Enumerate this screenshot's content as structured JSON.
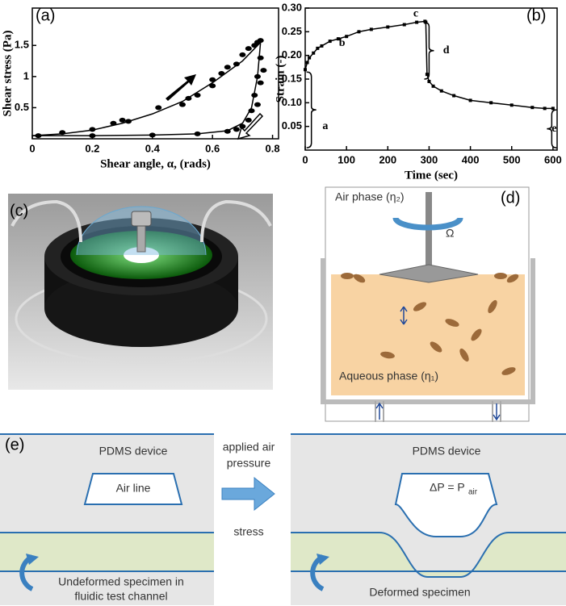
{
  "chart_data": [
    {
      "type": "scatter",
      "panel_label": "(a)",
      "x_label": "Shear angle, α, (rads)",
      "y_label": "Shear stress (Pa)",
      "xlim": [
        0,
        0.82
      ],
      "ylim": [
        0,
        2.1
      ],
      "xticks": [
        0,
        0.2,
        0.4,
        0.6,
        0.8
      ],
      "yticks": [
        0.5,
        1,
        1.5
      ],
      "series": [
        {
          "color": "#000",
          "line": false,
          "x": [
            0.02,
            0.1,
            0.2,
            0.27,
            0.3,
            0.32,
            0.42,
            0.5,
            0.52,
            0.55,
            0.6,
            0.6,
            0.63,
            0.65,
            0.68,
            0.7,
            0.72,
            0.74,
            0.76,
            0.75,
            0.76,
            0.75,
            0.74,
            0.73,
            0.72,
            0.7,
            0.68,
            0.65,
            0.55,
            0.4,
            0.2,
            0.77,
            0.76,
            0.75
          ],
          "values": [
            0.05,
            0.1,
            0.15,
            0.25,
            0.3,
            0.28,
            0.5,
            0.55,
            0.65,
            0.7,
            0.85,
            0.95,
            1.05,
            1.15,
            1.2,
            1.35,
            1.45,
            1.5,
            1.58,
            1.55,
            1.3,
            1.0,
            0.7,
            0.45,
            0.3,
            0.2,
            0.15,
            0.12,
            0.08,
            0.06,
            0.05,
            1.1,
            0.9,
            0.55
          ]
        },
        {
          "color": "#000",
          "line": true,
          "x": [
            0,
            0.1,
            0.2,
            0.3,
            0.4,
            0.5,
            0.6,
            0.7,
            0.76
          ],
          "values": [
            0.05,
            0.08,
            0.14,
            0.25,
            0.4,
            0.6,
            0.9,
            1.25,
            1.55
          ]
        },
        {
          "color": "#000",
          "line": true,
          "x": [
            0.76,
            0.75,
            0.73,
            0.7,
            0.65,
            0.55,
            0.4,
            0.2,
            0
          ],
          "values": [
            1.55,
            1.0,
            0.5,
            0.25,
            0.13,
            0.08,
            0.06,
            0.05,
            0.05
          ]
        }
      ]
    },
    {
      "type": "line",
      "panel_label": "(b)",
      "x_label": "Time (sec)",
      "y_label": "Strain (-)",
      "xlim": [
        0,
        610
      ],
      "ylim": [
        0,
        0.3
      ],
      "xticks": [
        0,
        100,
        200,
        300,
        400,
        500,
        600
      ],
      "yticks": [
        0.05,
        {
          "value": 0.1,
          "label": "0.10"
        },
        0.15,
        {
          "value": 0.2,
          "label": "0.20"
        },
        0.25,
        {
          "value": 0.3,
          "label": "0.30"
        }
      ],
      "annotations": [
        "a",
        "b",
        "c",
        "d",
        "e"
      ],
      "series": [
        {
          "color": "#000",
          "line": true,
          "x": [
            0,
            5,
            10,
            20,
            30,
            40,
            60,
            80,
            100,
            130,
            160,
            200,
            240,
            270,
            290,
            292,
            295,
            300,
            310,
            330,
            360,
            400,
            450,
            500,
            550,
            580,
            600
          ],
          "values": [
            0.17,
            0.185,
            0.195,
            0.205,
            0.215,
            0.22,
            0.23,
            0.235,
            0.24,
            0.25,
            0.255,
            0.26,
            0.265,
            0.27,
            0.272,
            0.27,
            0.16,
            0.145,
            0.135,
            0.125,
            0.115,
            0.105,
            0.1,
            0.095,
            0.09,
            0.088,
            0.088
          ]
        }
      ]
    }
  ],
  "panel_c": {
    "label": "(c)"
  },
  "panel_d": {
    "label": "(d)",
    "air": "Air phase (η₂)",
    "omega": "Ω",
    "aqueous": "Aqueous phase (η₁)"
  },
  "panel_e": {
    "label": "(e)",
    "device_left": "PDMS device",
    "air_line": "Air line",
    "arrow_top_1": "applied air",
    "arrow_top_2": "pressure",
    "arrow_bottom": "stress",
    "device_right": "PDMS device",
    "dp": "ΔP = P",
    "dp_sub": "air",
    "undeformed_1": "Undeformed specimen in",
    "undeformed_2": "fluidic test channel",
    "deformed": "Deformed specimen"
  }
}
